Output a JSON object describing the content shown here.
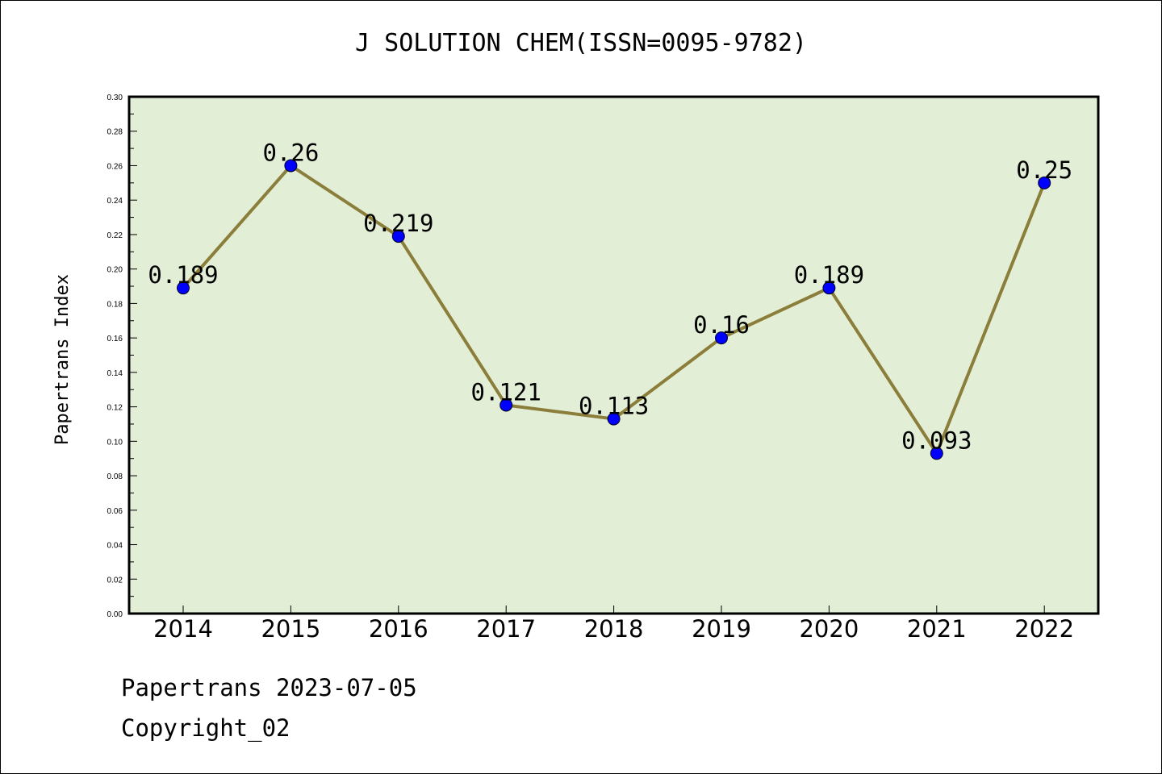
{
  "chart_data": {
    "type": "line",
    "title": "J SOLUTION CHEM(ISSN=0095-9782)",
    "xlabel": "",
    "ylabel": "Papertrans Index",
    "categories": [
      "2014",
      "2015",
      "2016",
      "2017",
      "2018",
      "2019",
      "2020",
      "2021",
      "2022"
    ],
    "values": [
      0.189,
      0.26,
      0.219,
      0.121,
      0.113,
      0.16,
      0.189,
      0.093,
      0.25
    ],
    "data_labels": [
      "0.189",
      "0.26",
      "0.219",
      "0.121",
      "0.113",
      "0.16",
      "0.189",
      "0.093",
      "0.25"
    ],
    "ylim": [
      0,
      0.3
    ],
    "yticks": [
      "0.00",
      "0.02",
      "0.04",
      "0.06",
      "0.08",
      "0.10",
      "0.12",
      "0.14",
      "0.16",
      "0.18",
      "0.20",
      "0.22",
      "0.24",
      "0.26",
      "0.28",
      "0.30"
    ],
    "grid": false,
    "colors": {
      "plot_background": "#e2efd6",
      "line": "#8b7d3a",
      "marker": "#0000ff"
    }
  },
  "footer": {
    "line1": "Papertrans 2023-07-05",
    "line2": "Copyright_02"
  }
}
